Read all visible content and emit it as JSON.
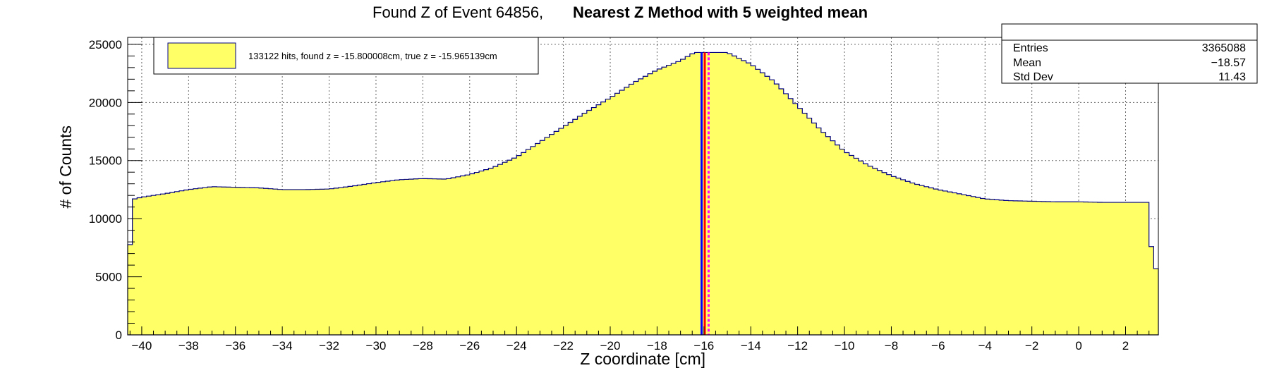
{
  "chart_data": {
    "type": "histogram",
    "title": "Found Z of Event 64856,",
    "subtitle": "Nearest Z Method with 5 weighted mean",
    "xlabel": "Z coordinate [cm]",
    "ylabel": "# of Counts",
    "xlim": [
      -40.6,
      3.4
    ],
    "ylim": [
      0,
      25600
    ],
    "x_ticks": [
      -40,
      -38,
      -36,
      -34,
      -32,
      -30,
      -28,
      -26,
      -24,
      -22,
      -20,
      -18,
      -16,
      -14,
      -12,
      -10,
      -8,
      -6,
      -4,
      -2,
      0,
      2
    ],
    "x_tick_labels": [
      "−40",
      "−38",
      "−36",
      "−34",
      "−32",
      "−30",
      "−28",
      "−26",
      "−24",
      "−22",
      "−20",
      "−18",
      "−16",
      "−14",
      "−12",
      "−10",
      "−8",
      "−6",
      "−4",
      "−2",
      "0",
      "2"
    ],
    "y_ticks": [
      0,
      5000,
      10000,
      15000,
      20000,
      25000
    ],
    "y_tick_labels": [
      "0",
      "5000",
      "10000",
      "15000",
      "20000",
      "25000"
    ],
    "grid": true,
    "fill_color": "#ffff66",
    "line_color": "#000080",
    "profile": [
      [
        -40.6,
        5800
      ],
      [
        -40.3,
        11700
      ],
      [
        -40.0,
        11850
      ],
      [
        -39.0,
        12150
      ],
      [
        -38.0,
        12500
      ],
      [
        -37.0,
        12750
      ],
      [
        -36.0,
        12700
      ],
      [
        -35.0,
        12650
      ],
      [
        -34.0,
        12500
      ],
      [
        -33.0,
        12500
      ],
      [
        -32.0,
        12550
      ],
      [
        -31.0,
        12800
      ],
      [
        -30.0,
        13100
      ],
      [
        -29.0,
        13350
      ],
      [
        -28.0,
        13450
      ],
      [
        -27.0,
        13400
      ],
      [
        -26.0,
        13800
      ],
      [
        -25.0,
        14400
      ],
      [
        -24.0,
        15300
      ],
      [
        -23.0,
        16600
      ],
      [
        -22.0,
        17900
      ],
      [
        -21.0,
        19200
      ],
      [
        -20.0,
        20400
      ],
      [
        -19.0,
        21700
      ],
      [
        -18.0,
        22800
      ],
      [
        -17.0,
        23600
      ],
      [
        -16.4,
        24300
      ],
      [
        -15.0,
        24300
      ],
      [
        -14.0,
        23300
      ],
      [
        -13.0,
        21800
      ],
      [
        -12.0,
        19700
      ],
      [
        -11.0,
        17600
      ],
      [
        -10.0,
        15800
      ],
      [
        -9.0,
        14600
      ],
      [
        -8.0,
        13700
      ],
      [
        -7.0,
        13000
      ],
      [
        -6.0,
        12500
      ],
      [
        -5.0,
        12100
      ],
      [
        -4.0,
        11700
      ],
      [
        -3.0,
        11550
      ],
      [
        -2.0,
        11500
      ],
      [
        -1.0,
        11450
      ],
      [
        0.0,
        11450
      ],
      [
        1.0,
        11400
      ],
      [
        2.0,
        11400
      ],
      [
        3.0,
        11400
      ],
      [
        3.15,
        5700
      ],
      [
        3.4,
        5700
      ]
    ],
    "markers": [
      {
        "x": -15.965139,
        "color": "#ff0000",
        "style": "solid"
      },
      {
        "x": -16.1,
        "color": "#0000ff",
        "style": "solid"
      },
      {
        "x": -15.800008,
        "color": "#ff00ff",
        "style": "dashed"
      }
    ],
    "legend": {
      "position": "top-left",
      "entries": [
        {
          "label": "133122 hits, found z = -15.800008cm, true z = -15.965139cm",
          "color": "#ffff66"
        }
      ]
    },
    "stats": {
      "position": "top-right",
      "rows": [
        {
          "label": "Entries",
          "value": "3365088"
        },
        {
          "label": "Mean",
          "value": "−18.57"
        },
        {
          "label": "Std Dev",
          "value": "11.43"
        }
      ]
    }
  }
}
